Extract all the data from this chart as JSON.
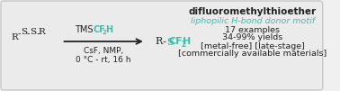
{
  "bg_color": "#f0f0f0",
  "box_color": "#e8e8e8",
  "box_edge_color": "#cccccc",
  "teal_color": "#3dbfad",
  "black_color": "#222222",
  "title_text": "difluoromethylthioether",
  "subtitle_text": "liphopilic H-bond donor motif",
  "line1": "17 examples",
  "line2": "34-99% yields",
  "line3": "[metal-free] [late-stage]",
  "line4": "[commercially available materials]",
  "reagent_line1": "TMSCF",
  "reagent_sub1": "2",
  "reagent_end1": "H",
  "reagent_line2": "CsF, NMP,",
  "reagent_line3": "0 °C - rt, 16 h"
}
